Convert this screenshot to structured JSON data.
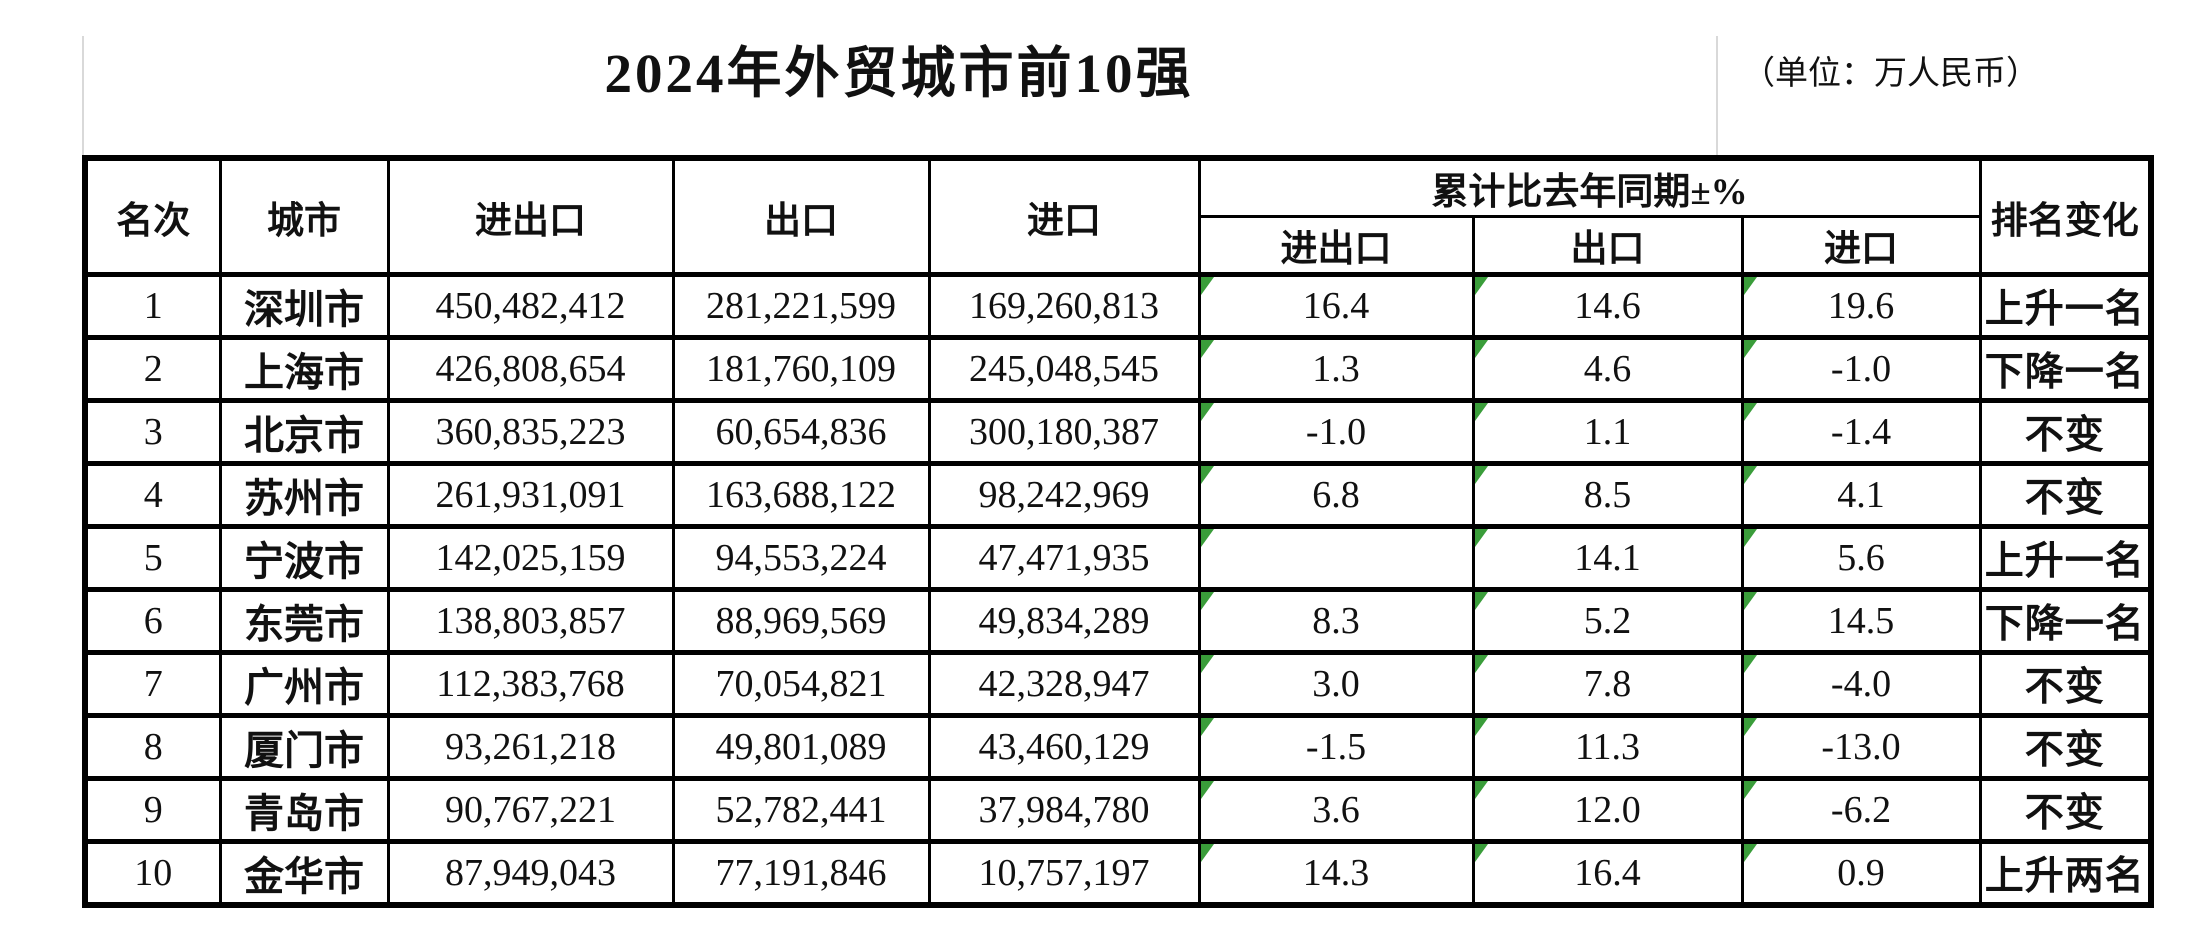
{
  "title": "2024年外贸城市前10强",
  "unit_label": "（单位：万人民币）",
  "colors": {
    "border": "#000000",
    "flag_green": "#3a9d3a",
    "text": "#111111"
  },
  "table": {
    "headers": {
      "rank": "名次",
      "city": "城市",
      "import_export": "进出口",
      "export": "出口",
      "import": "进口",
      "yoy_group": "累计比去年同期±%",
      "yoy_import_export": "进出口",
      "yoy_export": "出口",
      "yoy_import": "进口",
      "rank_change": "排名变化"
    },
    "rows": [
      {
        "rank": "1",
        "city": "深圳市",
        "import_export": "450,482,412",
        "export": "281,221,599",
        "import": "169,260,813",
        "yoy_ie": "16.4",
        "yoy_e": "14.6",
        "yoy_i": "19.6",
        "rank_change": "上升一名"
      },
      {
        "rank": "2",
        "city": "上海市",
        "import_export": "426,808,654",
        "export": "181,760,109",
        "import": "245,048,545",
        "yoy_ie": "1.3",
        "yoy_e": "4.6",
        "yoy_i": "-1.0",
        "rank_change": "下降一名"
      },
      {
        "rank": "3",
        "city": "北京市",
        "import_export": "360,835,223",
        "export": "60,654,836",
        "import": "300,180,387",
        "yoy_ie": "-1.0",
        "yoy_e": "1.1",
        "yoy_i": "-1.4",
        "rank_change": "不变"
      },
      {
        "rank": "4",
        "city": "苏州市",
        "import_export": "261,931,091",
        "export": "163,688,122",
        "import": "98,242,969",
        "yoy_ie": "6.8",
        "yoy_e": "8.5",
        "yoy_i": "4.1",
        "rank_change": "不变"
      },
      {
        "rank": "5",
        "city": "宁波市",
        "import_export": "142,025,159",
        "export": "94,553,224",
        "import": "47,471,935",
        "yoy_ie": "",
        "yoy_e": "14.1",
        "yoy_i": "5.6",
        "rank_change": "上升一名"
      },
      {
        "rank": "6",
        "city": "东莞市",
        "import_export": "138,803,857",
        "export": "88,969,569",
        "import": "49,834,289",
        "yoy_ie": "8.3",
        "yoy_e": "5.2",
        "yoy_i": "14.5",
        "rank_change": "下降一名"
      },
      {
        "rank": "7",
        "city": "广州市",
        "import_export": "112,383,768",
        "export": "70,054,821",
        "import": "42,328,947",
        "yoy_ie": "3.0",
        "yoy_e": "7.8",
        "yoy_i": "-4.0",
        "rank_change": "不变"
      },
      {
        "rank": "8",
        "city": "厦门市",
        "import_export": "93,261,218",
        "export": "49,801,089",
        "import": "43,460,129",
        "yoy_ie": "-1.5",
        "yoy_e": "11.3",
        "yoy_i": "-13.0",
        "rank_change": "不变"
      },
      {
        "rank": "9",
        "city": "青岛市",
        "import_export": "90,767,221",
        "export": "52,782,441",
        "import": "37,984,780",
        "yoy_ie": "3.6",
        "yoy_e": "12.0",
        "yoy_i": "-6.2",
        "rank_change": "不变"
      },
      {
        "rank": "10",
        "city": "金华市",
        "import_export": "87,949,043",
        "export": "77,191,846",
        "import": "10,757,197",
        "yoy_ie": "14.3",
        "yoy_e": "16.4",
        "yoy_i": "0.9",
        "rank_change": "上升两名"
      }
    ]
  }
}
